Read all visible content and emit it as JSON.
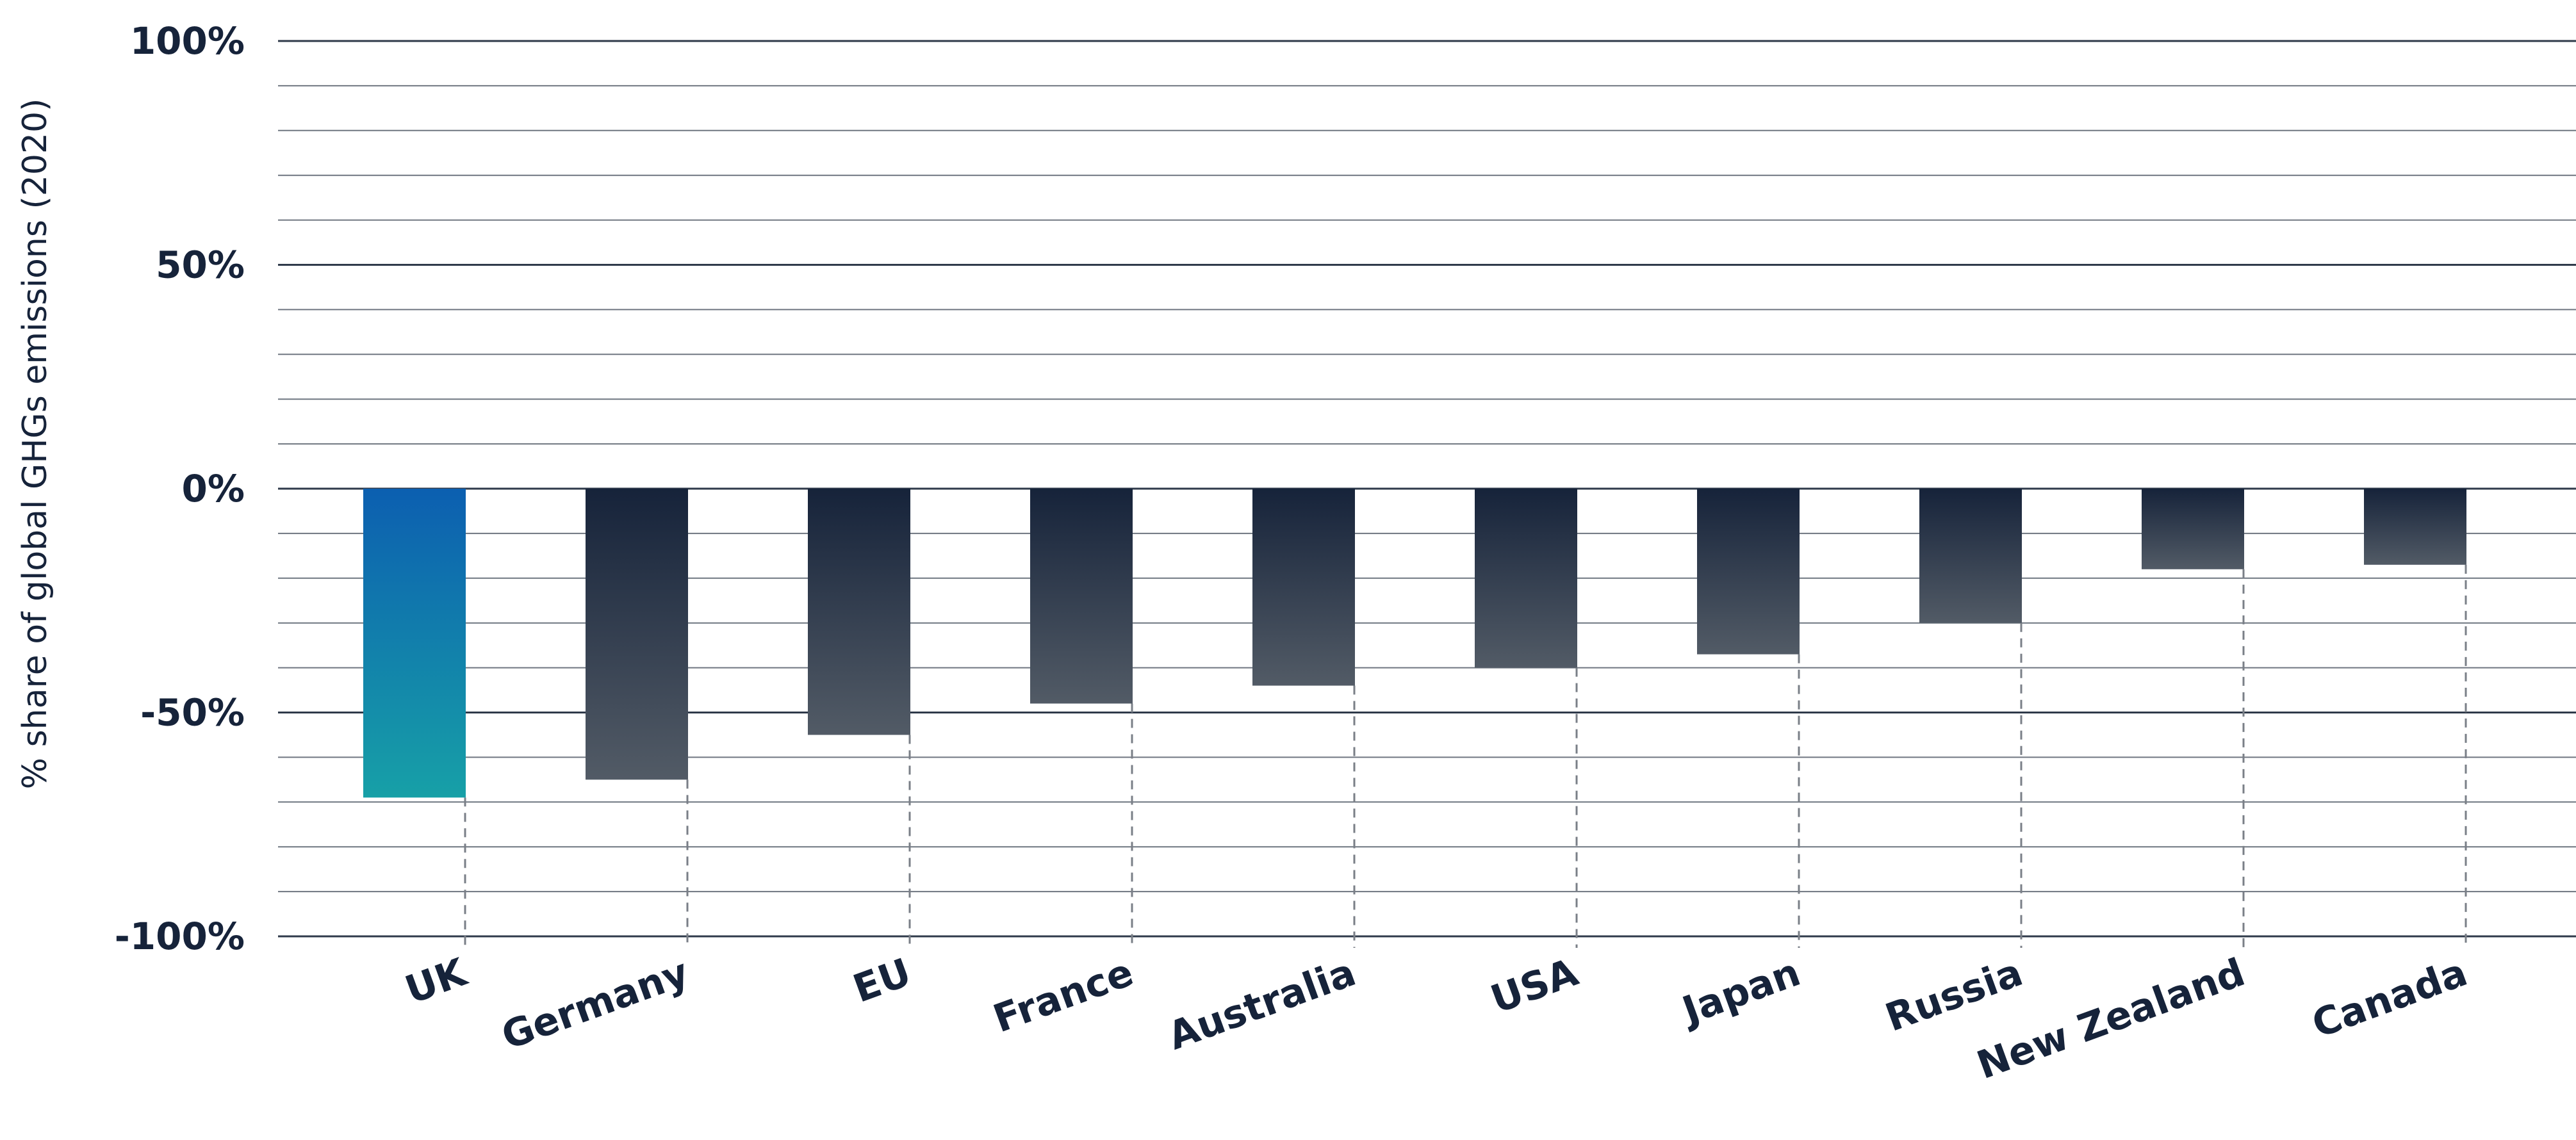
{
  "chart_data": {
    "type": "bar",
    "title": "",
    "xlabel": "",
    "ylabel": "% share of global GHGs emissions (2020)",
    "ylim": [
      -100,
      100
    ],
    "yticks": [
      {
        "value": 100,
        "label": "100%"
      },
      {
        "value": 50,
        "label": "50%"
      },
      {
        "value": 0,
        "label": "0%"
      },
      {
        "value": -50,
        "label": "-50%"
      },
      {
        "value": -100,
        "label": "-100%"
      }
    ],
    "minor_gridline_step": 10,
    "grid": true,
    "legend": "none",
    "categories": [
      "UK",
      "Germany",
      "EU",
      "France",
      "Australia",
      "USA",
      "Japan",
      "Russia",
      "New Zealand",
      "Canada"
    ],
    "values": [
      -69,
      -65,
      -55,
      -48,
      -44,
      -40,
      -37,
      -30,
      -18,
      -17
    ],
    "highlight_category": "UK",
    "colors": {
      "highlight_top": "#0c5fb0",
      "highlight_bottom": "#17a0a7",
      "bar_top": "#16233a",
      "bar_bottom": "#525b66",
      "grid": "#6f7680",
      "major_grid": "#2f3a4a",
      "text": "#16233a",
      "leader_line": "#7a7f87"
    }
  }
}
